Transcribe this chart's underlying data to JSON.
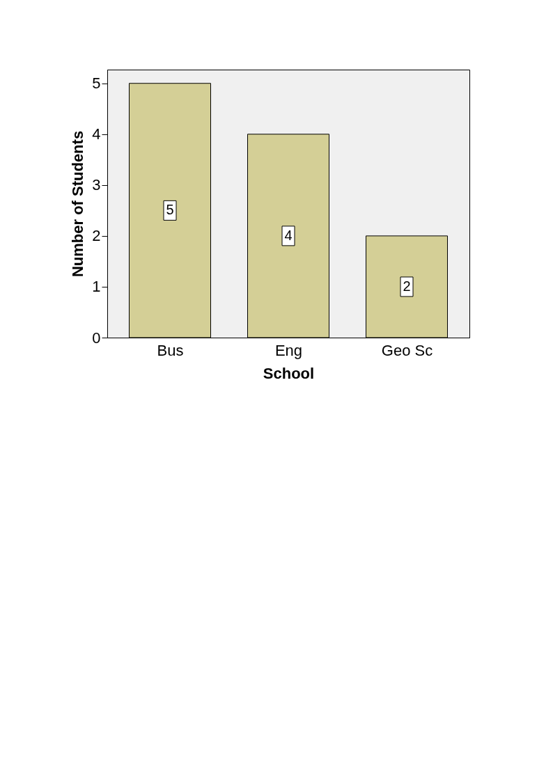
{
  "chart_data": {
    "type": "bar",
    "xlabel": "School",
    "ylabel": "Number of Students",
    "categories": [
      "Bus",
      "Eng",
      "Geo Sc"
    ],
    "values": [
      5,
      4,
      2
    ],
    "color": "#d4cf96",
    "ylim": [
      0,
      5.27
    ],
    "yticks": [
      0,
      1,
      2,
      3,
      4,
      5
    ],
    "grid": false,
    "data_labels": true
  }
}
